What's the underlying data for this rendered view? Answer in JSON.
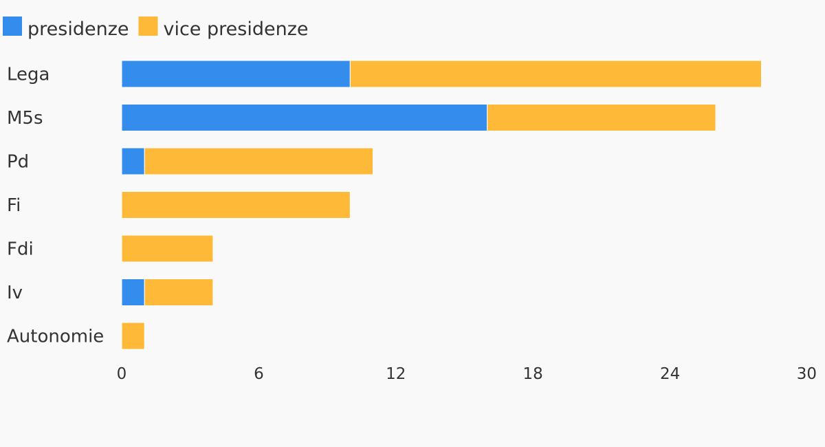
{
  "chart_data": {
    "type": "bar",
    "orientation": "horizontal",
    "stacked": true,
    "categories": [
      "Lega",
      "M5s",
      "Pd",
      "Fi",
      "Fdi",
      "Iv",
      "Autonomie"
    ],
    "series": [
      {
        "name": "presidenze",
        "color": "#348ded",
        "values": [
          10,
          16,
          1,
          0,
          0,
          1,
          0
        ]
      },
      {
        "name": "vice presidenze",
        "color": "#ffb938",
        "values": [
          18,
          10,
          10,
          10,
          4,
          3,
          1
        ]
      }
    ],
    "xlim": [
      0,
      30
    ],
    "xticks": [
      "0",
      "6",
      "12",
      "18",
      "24",
      "30"
    ],
    "grid": false,
    "legend_position": "top-left",
    "title": "",
    "xlabel": "",
    "ylabel": ""
  }
}
